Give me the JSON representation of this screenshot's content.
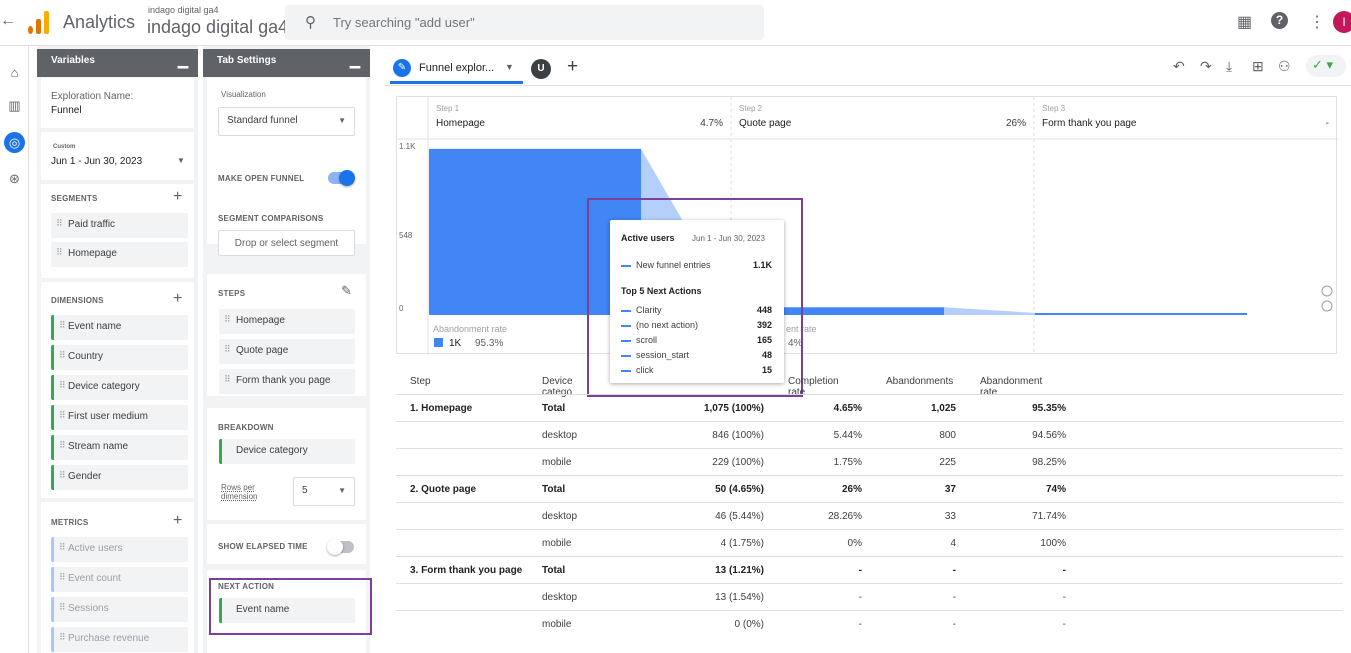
{
  "header": {
    "app_name": "Analytics",
    "property_small": "indago digital ga4",
    "property_name": "indago digital ga4",
    "search_placeholder": "Try searching \"add user\"",
    "avatar_initial": "I"
  },
  "variables": {
    "title": "Variables",
    "exploration_name_label": "Exploration Name:",
    "exploration_name": "Funnel",
    "date_custom_label": "Custom",
    "date_range": "Jun 1 - Jun 30, 2023",
    "segments_title": "SEGMENTS",
    "segments": [
      "Paid traffic",
      "Homepage"
    ],
    "dimensions_title": "DIMENSIONS",
    "dimensions": [
      "Event name",
      "Country",
      "Device category",
      "First user medium",
      "Stream name",
      "Gender"
    ],
    "metrics_title": "METRICS",
    "metrics": [
      "Active users",
      "Event count",
      "Sessions",
      "Purchase revenue"
    ]
  },
  "tab_settings": {
    "title": "Tab Settings",
    "visualization_label": "Visualization",
    "visualization": "Standard funnel",
    "open_funnel_label": "MAKE OPEN FUNNEL",
    "segment_comparisons_label": "SEGMENT COMPARISONS",
    "segment_drop_placeholder": "Drop or select segment",
    "steps_label": "STEPS",
    "steps": [
      "Homepage",
      "Quote page",
      "Form thank you page"
    ],
    "breakdown_label": "BREAKDOWN",
    "breakdown": "Device category",
    "rows_per_dimension_label": "Rows per dimension",
    "rows_per_dimension": "5",
    "show_elapsed_label": "SHOW ELAPSED TIME",
    "next_action_label": "NEXT ACTION",
    "next_action": "Event name"
  },
  "tabs": {
    "active_label": "Funnel explor...",
    "user_initial": "U"
  },
  "chart_data": {
    "type": "bar",
    "categories": [
      "Homepage",
      "Quote page",
      "Form thank you page"
    ],
    "step_labels": [
      "Step 1",
      "Step 2",
      "Step 3"
    ],
    "completion_rates": [
      "4.7%",
      "26%",
      "-"
    ],
    "values": [
      1075,
      50,
      13
    ],
    "y_ticks": [
      "1.1K",
      "548",
      "0"
    ],
    "ylim": [
      0,
      1100
    ],
    "abandonment_label": "Abandonment rate",
    "abandonment_value": "1K",
    "abandonment_rate": "95.3%",
    "abandonment_label_2": "ent rate",
    "abandonment_rate_2": "4%",
    "bar_color": "#4285f4"
  },
  "tooltip": {
    "title": "Active users",
    "date": "Jun 1 - Jun 30, 2023",
    "entries_label": "New funnel entries",
    "entries_value": "1.1K",
    "next_actions_title": "Top 5 Next Actions",
    "actions": [
      {
        "name": "Clarity",
        "value": "448"
      },
      {
        "name": "(no next action)",
        "value": "392"
      },
      {
        "name": "scroll",
        "value": "165"
      },
      {
        "name": "session_start",
        "value": "48"
      },
      {
        "name": "click",
        "value": "15"
      }
    ]
  },
  "table": {
    "headers": [
      "Step",
      "Device catego",
      "",
      "Completion rate",
      "Abandonments",
      "Abandonment rate"
    ],
    "rows": [
      {
        "step": "1. Homepage",
        "device": "Total",
        "users": "1,075 (100%)",
        "completion": "4.65%",
        "abandonments": "1,025",
        "abandon_rate": "95.35%"
      },
      {
        "step": "",
        "device": "desktop",
        "users": "846 (100%)",
        "completion": "5.44%",
        "abandonments": "800",
        "abandon_rate": "94.56%"
      },
      {
        "step": "",
        "device": "mobile",
        "users": "229 (100%)",
        "completion": "1.75%",
        "abandonments": "225",
        "abandon_rate": "98.25%"
      },
      {
        "step": "2. Quote page",
        "device": "Total",
        "users": "50 (4.65%)",
        "completion": "26%",
        "abandonments": "37",
        "abandon_rate": "74%"
      },
      {
        "step": "",
        "device": "desktop",
        "users": "46 (5.44%)",
        "completion": "28.26%",
        "abandonments": "33",
        "abandon_rate": "71.74%"
      },
      {
        "step": "",
        "device": "mobile",
        "users": "4 (1.75%)",
        "completion": "0%",
        "abandonments": "4",
        "abandon_rate": "100%"
      },
      {
        "step": "3. Form thank you page",
        "device": "Total",
        "users": "13 (1.21%)",
        "completion": "-",
        "abandonments": "-",
        "abandon_rate": "-"
      },
      {
        "step": "",
        "device": "desktop",
        "users": "13 (1.54%)",
        "completion": "-",
        "abandonments": "-",
        "abandon_rate": "-"
      },
      {
        "step": "",
        "device": "mobile",
        "users": "0 (0%)",
        "completion": "-",
        "abandonments": "-",
        "abandon_rate": "-"
      }
    ]
  },
  "colors": {
    "accent": "#1a73e8",
    "highlight": "#7b3f9c",
    "dimension_chip": "#34a853"
  }
}
